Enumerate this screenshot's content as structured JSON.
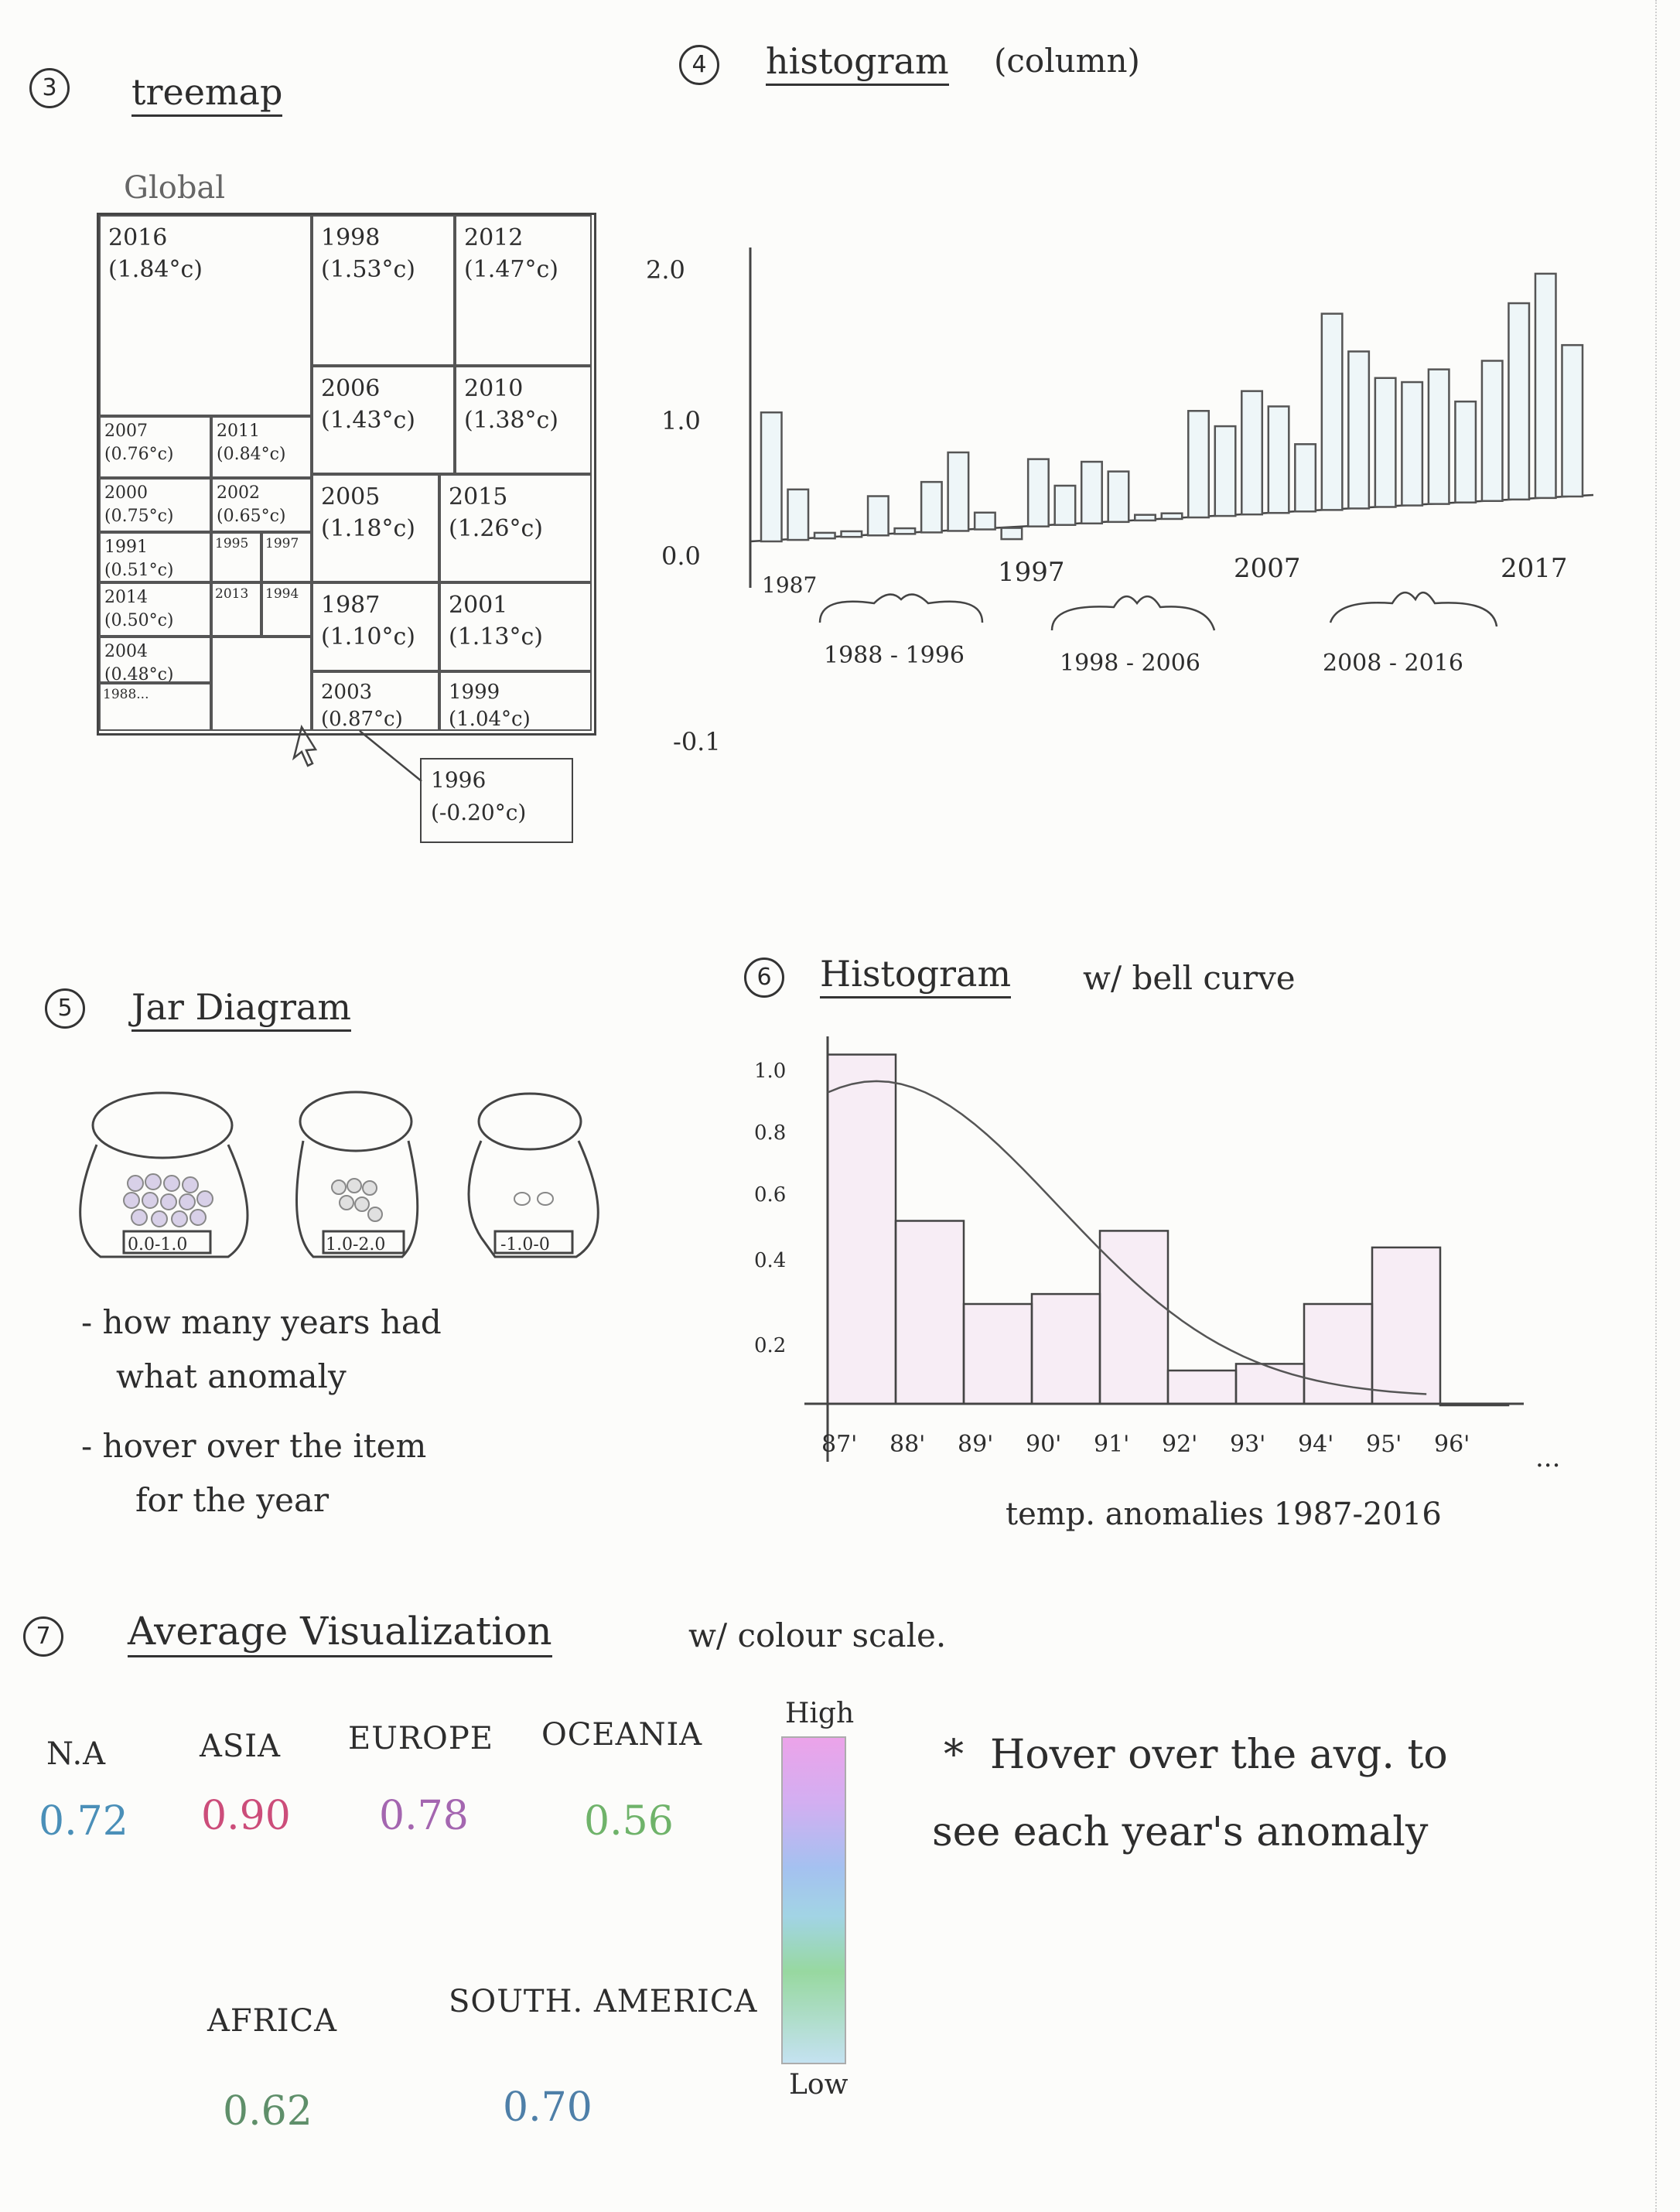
{
  "treemap": {
    "number": "3",
    "title": "treemap",
    "heading": "Global",
    "cells": [
      {
        "year": "2016",
        "value": "(1.84°c)"
      },
      {
        "year": "1998",
        "value": "(1.53°c)"
      },
      {
        "year": "2012",
        "value": "(1.47°c)"
      },
      {
        "year": "2006",
        "value": "(1.43°c)"
      },
      {
        "year": "2010",
        "value": "(1.38°c)"
      },
      {
        "year": "2007",
        "value": "(0.76°c)"
      },
      {
        "year": "2011",
        "value": "(0.84°c)"
      },
      {
        "year": "2000",
        "value": "(0.75°c)"
      },
      {
        "year": "2002",
        "value": "(0.65°c)"
      },
      {
        "year": "2005",
        "value": "(1.18°c)"
      },
      {
        "year": "2015",
        "value": "(1.26°c)"
      },
      {
        "year": "1991",
        "value": "(0.51°c)"
      },
      {
        "year": "1995",
        "value": ""
      },
      {
        "year": "1997",
        "value": ""
      },
      {
        "year": "2014",
        "value": "(0.50°c)"
      },
      {
        "year": "2013",
        "value": ""
      },
      {
        "year": "1994",
        "value": ""
      },
      {
        "year": "1987",
        "value": "(1.10°c)"
      },
      {
        "year": "2001",
        "value": "(1.13°c)"
      },
      {
        "year": "2004",
        "value": "(0.48°c)"
      },
      {
        "year": "2003",
        "value": "(0.87°c)"
      },
      {
        "year": "1999",
        "value": "(1.04°c)"
      },
      {
        "year": "1988...",
        "value": ""
      }
    ],
    "tooltip": {
      "year": "1996",
      "value": "(-0.20°c)"
    }
  },
  "histogram_column": {
    "number": "4",
    "title": "histogram",
    "subtitle": "(column)",
    "y_ticks": [
      "2.0",
      "1.0",
      "0.0",
      "-0.1"
    ],
    "x_labels": [
      "1987",
      "1997",
      "2007",
      "2017"
    ],
    "groups": [
      "1988 - 1996",
      "1998 - 2006",
      "2008 - 2016"
    ]
  },
  "chart_data": [
    {
      "type": "bar",
      "title": "histogram (column)",
      "categories": [
        "1987",
        "1988",
        "1989",
        "1990",
        "1991",
        "1992",
        "1993",
        "1994",
        "1995",
        "1996",
        "1997",
        "1998",
        "1999",
        "2000",
        "2001",
        "2002",
        "2003",
        "2004",
        "2005",
        "2006",
        "2007",
        "2008",
        "2009",
        "2010",
        "2011",
        "2012",
        "2013",
        "2014",
        "2015",
        "2016",
        "2017"
      ],
      "values": [
        1.15,
        0.45,
        0.05,
        0.05,
        0.35,
        0.05,
        0.45,
        0.7,
        0.15,
        -0.1,
        0.6,
        0.35,
        0.55,
        0.45,
        0.05,
        0.05,
        0.95,
        0.8,
        1.1,
        0.95,
        0.6,
        1.75,
        1.4,
        1.15,
        1.1,
        1.2,
        0.9,
        1.25,
        1.75,
        2.0,
        1.35
      ],
      "ylim": [
        -0.1,
        2.0
      ]
    },
    {
      "type": "bar",
      "title": "Histogram w/ bell curve",
      "xlabel": "temp. anomalies 1987-2016",
      "categories": [
        "87'",
        "88'",
        "89'",
        "90'",
        "91'",
        "92'",
        "93'",
        "94'",
        "95'",
        "96'"
      ],
      "values": [
        1.05,
        0.55,
        0.3,
        0.33,
        0.52,
        0.1,
        0.12,
        0.3,
        0.47,
        0.0
      ],
      "y_ticks": [
        "1.0",
        "0.8",
        "0.6",
        "0.4",
        "0.2"
      ],
      "ylim": [
        0,
        1.1
      ]
    }
  ],
  "jars": {
    "number": "5",
    "title": "Jar Diagram",
    "labels": [
      "0.0-1.0",
      "1.0-2.0",
      "-1.0-0"
    ],
    "notes": [
      "- how many years had",
      "what anomaly",
      "- hover over the item",
      "for the year"
    ]
  },
  "bell": {
    "number": "6",
    "title": "Histogram",
    "suffix": "w/ bell curve",
    "x_tail": "...",
    "xlabel": "temp. anomalies 1987-2016"
  },
  "averages": {
    "number": "7",
    "title": "Average Visualization",
    "suffix": "w/ colour scale.",
    "regions": [
      {
        "name": "N.A",
        "value": "0.72",
        "color": "#4a8fb8"
      },
      {
        "name": "ASIA",
        "value": "0.90",
        "color": "#cc4d7a"
      },
      {
        "name": "EUROPE",
        "value": "0.78",
        "color": "#a466b0"
      },
      {
        "name": "OCEANIA",
        "value": "0.56",
        "color": "#6fb36a"
      },
      {
        "name": "AFRICA",
        "value": "0.62",
        "color": "#5f8f6a"
      },
      {
        "name": "SOUTH. AMERICA",
        "value": "0.70",
        "color": "#4e7fa8"
      }
    ],
    "scale_high": "High",
    "scale_low": "Low",
    "note_star": "*",
    "note_lines": [
      "Hover over the avg. to",
      "see each year's anomaly"
    ]
  }
}
